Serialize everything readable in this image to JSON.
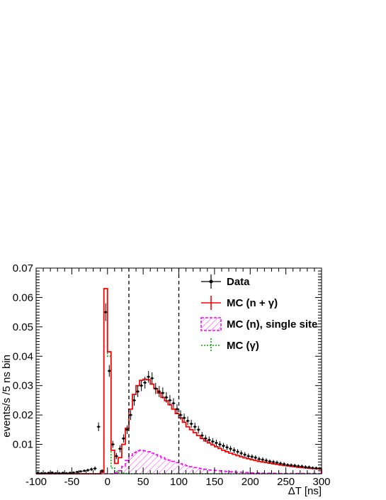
{
  "chart_data": {
    "type": "line",
    "xlabel": "ΔT [ns]",
    "ylabel": "events/s /5 ns bin",
    "xlim": [
      -100,
      300
    ],
    "ylim": [
      0,
      0.07
    ],
    "x_ticks": [
      -100,
      -50,
      0,
      50,
      100,
      150,
      200,
      250,
      300
    ],
    "x_tick_labels": [
      "-100",
      "-50",
      "0",
      "50",
      "100",
      "150",
      "200",
      "250",
      "300"
    ],
    "y_ticks": [
      0.01,
      0.02,
      0.03,
      0.04,
      0.05,
      0.06,
      0.07
    ],
    "y_tick_labels": [
      "0.01",
      "0.02",
      "0.03",
      "0.04",
      "0.05",
      "0.06",
      "0.07"
    ],
    "bin_width": 5,
    "cut_lines_x": [
      30,
      100
    ],
    "legend": {
      "placement": "top-right",
      "entries": [
        "Data",
        "MC (n + γ)",
        "MC (n), single site",
        "MC (γ)"
      ]
    },
    "series": [
      {
        "name": "Data",
        "color": "#000000",
        "style": "points-with-error-bars",
        "bin_low": -100,
        "values": [
          0.0003,
          0.0002,
          0.0002,
          0.0003,
          0.0004,
          0.0002,
          0.0002,
          0.0003,
          0.0002,
          0.0003,
          0.0004,
          0.0006,
          0.0008,
          0.001,
          0.0012,
          0.0015,
          0.0018,
          0.016,
          0.001,
          0.055,
          0.035,
          0.01,
          0.006,
          0.0085,
          0.012,
          0.015,
          0.02,
          0.025,
          0.028,
          0.03,
          0.031,
          0.033,
          0.0325,
          0.029,
          0.028,
          0.0275,
          0.026,
          0.025,
          0.024,
          0.022,
          0.02,
          0.019,
          0.018,
          0.017,
          0.016,
          0.015,
          0.013,
          0.012,
          0.0115,
          0.011,
          0.0105,
          0.01,
          0.0095,
          0.009,
          0.0085,
          0.008,
          0.0075,
          0.007,
          0.0065,
          0.006,
          0.0058,
          0.0055,
          0.005,
          0.0048,
          0.0045,
          0.0042,
          0.004,
          0.0038,
          0.0035,
          0.0033,
          0.003,
          0.0029,
          0.0028,
          0.0026,
          0.0025,
          0.0023,
          0.0022,
          0.002,
          0.0019,
          0.0018
        ],
        "errors": [
          0.0002,
          0.0002,
          0.0002,
          0.0002,
          0.0002,
          0.0002,
          0.0002,
          0.0002,
          0.0002,
          0.0002,
          0.0003,
          0.0003,
          0.0004,
          0.0004,
          0.0005,
          0.0006,
          0.0007,
          0.0015,
          0.0005,
          0.003,
          0.002,
          0.0012,
          0.001,
          0.0012,
          0.0014,
          0.0015,
          0.0017,
          0.0018,
          0.0019,
          0.0019,
          0.002,
          0.002,
          0.002,
          0.0019,
          0.0019,
          0.0019,
          0.0018,
          0.0018,
          0.0017,
          0.0017,
          0.0016,
          0.0015,
          0.0015,
          0.0014,
          0.0014,
          0.0013,
          0.0012,
          0.0012,
          0.0012,
          0.0011,
          0.0011,
          0.0011,
          0.001,
          0.001,
          0.001,
          0.001,
          0.0009,
          0.0009,
          0.0009,
          0.0009,
          0.0008,
          0.0008,
          0.0008,
          0.0008,
          0.0008,
          0.0007,
          0.0007,
          0.0007,
          0.0007,
          0.0007,
          0.0006,
          0.0006,
          0.0006,
          0.0006,
          0.0006,
          0.0006,
          0.0006,
          0.0005,
          0.0005,
          0.0005
        ]
      },
      {
        "name": "MC (n + γ)",
        "color": "#ff0000",
        "style": "step",
        "bin_low": -100,
        "values": [
          0,
          0,
          0,
          0,
          0,
          0,
          0,
          0,
          0,
          0,
          0,
          0,
          0,
          0,
          0,
          0,
          0,
          0,
          0.0005,
          0.063,
          0.0415,
          0.008,
          0.0035,
          0.0055,
          0.01,
          0.0155,
          0.022,
          0.027,
          0.03,
          0.0318,
          0.0322,
          0.032,
          0.0305,
          0.029,
          0.0275,
          0.026,
          0.0248,
          0.0235,
          0.022,
          0.0205,
          0.019,
          0.0175,
          0.016,
          0.015,
          0.014,
          0.013,
          0.012,
          0.0112,
          0.0105,
          0.0098,
          0.0092,
          0.0086,
          0.008,
          0.0075,
          0.007,
          0.0066,
          0.0062,
          0.0058,
          0.0054,
          0.0051,
          0.0048,
          0.0045,
          0.0042,
          0.004,
          0.0038,
          0.0036,
          0.0034,
          0.0032,
          0.003,
          0.0028,
          0.0027,
          0.0025,
          0.0024,
          0.0022,
          0.0021,
          0.002,
          0.0019,
          0.0018,
          0.0017,
          0.0016
        ]
      },
      {
        "name": "MC (n), single site",
        "color": "#ff00ff",
        "style": "hatched-dashed-step",
        "bin_low": -100,
        "values": [
          0,
          0,
          0,
          0,
          0,
          0,
          0,
          0,
          0,
          0,
          0,
          0,
          0,
          0,
          0,
          0,
          0,
          0,
          0,
          0,
          0,
          0,
          0.0003,
          0.001,
          0.0025,
          0.0045,
          0.0062,
          0.0072,
          0.0078,
          0.008,
          0.0078,
          0.0075,
          0.007,
          0.0065,
          0.006,
          0.0055,
          0.005,
          0.0046,
          0.0042,
          0.0038,
          0.0034,
          0.003,
          0.0027,
          0.0024,
          0.0021,
          0.0019,
          0.0017,
          0.0015,
          0.0013,
          0.0012,
          0.0011,
          0.001,
          0.0009,
          0.0008,
          0.0007,
          0.0006,
          0.0005,
          0.0005,
          0.0004,
          0.0004,
          0.0003,
          0.0003,
          0.0003,
          0.0002,
          0.0002,
          0.0002,
          0.0002,
          0.0001,
          0.0001,
          0.0001,
          0.0001,
          0.0001,
          0.0001,
          0.0001,
          0.0001,
          0.0001,
          0.0001,
          0.0001,
          0.0001,
          0.0001
        ]
      },
      {
        "name": "MC (γ)",
        "color": "#00aa00",
        "style": "dotted-step",
        "bin_low": -100,
        "values": [
          0,
          0,
          0,
          0,
          0,
          0,
          0,
          0,
          0,
          0,
          0,
          0,
          0,
          0,
          0,
          0,
          0,
          0,
          0.0005,
          0.063,
          0.04,
          0.002,
          0.0008,
          0.0004,
          0.0002,
          0.0001,
          0,
          0,
          0,
          0,
          0,
          0,
          0,
          0,
          0,
          0,
          0,
          0,
          0,
          0,
          0,
          0,
          0,
          0,
          0,
          0,
          0,
          0,
          0,
          0,
          0,
          0,
          0,
          0,
          0,
          0,
          0,
          0,
          0,
          0,
          0,
          0,
          0,
          0,
          0,
          0,
          0,
          0,
          0,
          0,
          0,
          0,
          0,
          0,
          0,
          0,
          0,
          0,
          0,
          0
        ]
      }
    ]
  }
}
